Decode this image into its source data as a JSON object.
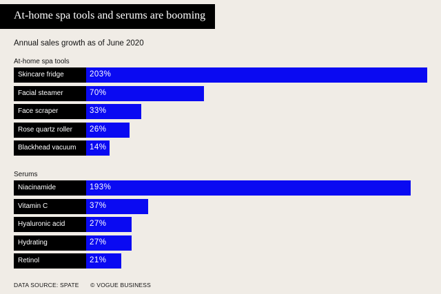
{
  "header": {
    "title": "At-home spa tools and serums are booming",
    "subtitle": "Annual sales growth as of June 2020"
  },
  "footer": {
    "source": "DATA SOURCE: SPATE",
    "credit": "© VOGUE BUSINESS"
  },
  "colors": {
    "bar": "#0a0af2",
    "label_bg": "#000000",
    "background": "#f0ece6"
  },
  "chart_data": {
    "type": "bar",
    "orientation": "horizontal",
    "title": "At-home spa tools and serums are booming",
    "subtitle": "Annual sales growth as of June 2020",
    "unit": "%",
    "groups": [
      {
        "name": "At-home spa tools",
        "categories": [
          "Skincare fridge",
          "Facial steamer",
          "Face scraper",
          "Rose quartz roller",
          "Blackhead vacuum"
        ],
        "values": [
          203,
          70,
          33,
          26,
          14
        ],
        "labels": [
          "203%",
          "70%",
          "33%",
          "26%",
          "14%"
        ]
      },
      {
        "name": "Serums",
        "categories": [
          "Niacinamide",
          "Vitamin C",
          "Hyaluronic acid",
          "Hydrating",
          "Retinol"
        ],
        "values": [
          193,
          37,
          27,
          27,
          21
        ],
        "labels": [
          "193%",
          "37%",
          "27%",
          "27%",
          "21%"
        ]
      }
    ]
  }
}
